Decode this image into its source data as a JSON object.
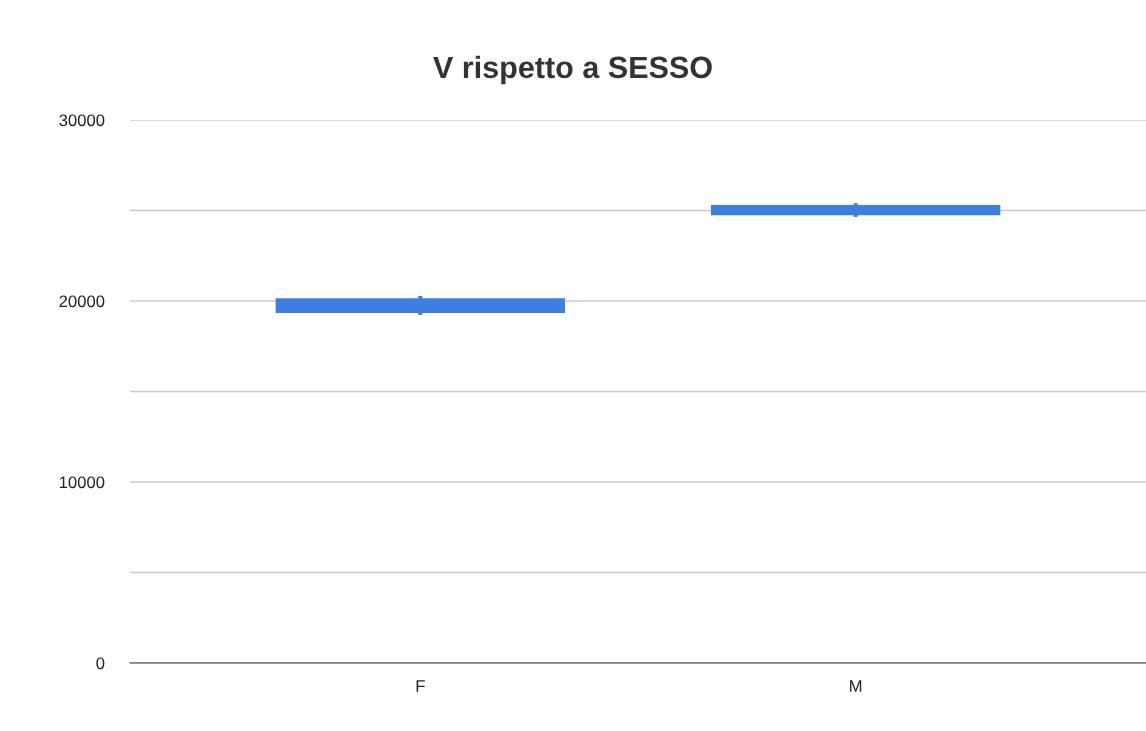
{
  "chart_data": {
    "type": "candlestick",
    "title": "V rispetto a SESSO",
    "categories": [
      "F",
      "M"
    ],
    "ohlc": [
      [
        20100,
        20280,
        19230,
        19400
      ],
      [
        25250,
        25400,
        24650,
        24800
      ]
    ],
    "color": "#3d7fe0",
    "ylim": [
      0,
      30000
    ],
    "yticks": [
      0,
      {
        "value": 5000,
        "label": null
      },
      10000,
      {
        "value": 15000,
        "label": null
      },
      20000,
      {
        "value": 25000,
        "label": null
      },
      30000
    ],
    "grid": "y",
    "legend": false
  }
}
